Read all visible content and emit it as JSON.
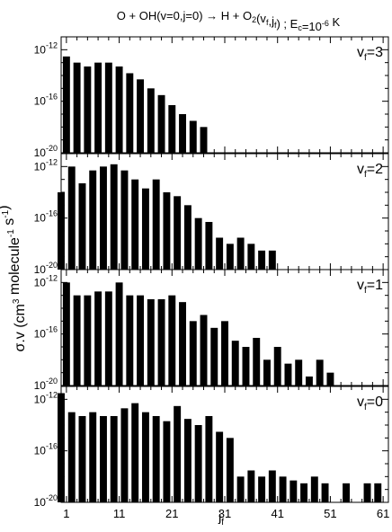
{
  "chart_data": {
    "type": "bar",
    "title": "O + OH(v=0,j=0) → H + O₂(v_f,j_f) ; E_c=10⁻⁶ K",
    "xlabel": "j_f",
    "ylabel": "σ.v (cm³ molecule⁻¹ s⁻¹)",
    "x_ticks": [
      1,
      11,
      21,
      31,
      41,
      51,
      61
    ],
    "xlim": [
      0,
      62
    ],
    "y_scale": "log",
    "ylim": [
      1e-20,
      1e-11
    ],
    "y_ticks": [
      "10⁻²⁰",
      "10⁻¹⁶",
      "10⁻¹²"
    ],
    "y_tick_exponents": [
      -20,
      -16,
      -12
    ],
    "grid": false,
    "panels": [
      {
        "label": "v_f=3",
        "label_text": "v",
        "label_sub": "f",
        "label_suffix": "=3",
        "j": [
          1,
          3,
          5,
          7,
          9,
          11,
          13,
          15,
          17,
          19,
          21,
          23,
          25,
          27
        ],
        "values": [
          3e-13,
          1e-13,
          5e-14,
          1e-13,
          1e-13,
          5e-14,
          1.5e-14,
          5e-15,
          1e-15,
          3e-16,
          5e-17,
          1e-17,
          3e-18,
          1e-18
        ]
      },
      {
        "label": "v_f=2",
        "label_text": "v",
        "label_sub": "f",
        "label_suffix": "=2",
        "j": [
          0,
          2,
          4,
          6,
          8,
          10,
          12,
          14,
          16,
          18,
          20,
          22,
          24,
          26,
          28,
          30,
          32,
          34,
          36,
          38,
          40
        ],
        "values": [
          1e-14,
          1e-12,
          5e-14,
          5e-13,
          1e-12,
          1.5e-12,
          5e-13,
          1e-13,
          2e-14,
          1e-13,
          1e-14,
          5e-15,
          1e-15,
          1e-16,
          5e-17,
          3e-18,
          1e-18,
          3e-18,
          1e-18,
          3e-19,
          3e-19
        ]
      },
      {
        "label": "v_f=1",
        "label_text": "v",
        "label_sub": "f",
        "label_suffix": "=1",
        "j": [
          1,
          3,
          5,
          7,
          9,
          11,
          13,
          15,
          17,
          19,
          21,
          23,
          25,
          27,
          29,
          31,
          33,
          35,
          37,
          39,
          41,
          43,
          45,
          47,
          49,
          51
        ],
        "values": [
          1e-12,
          1e-13,
          1e-13,
          2e-13,
          2e-13,
          1e-12,
          1e-13,
          1e-13,
          5e-14,
          5e-14,
          1e-13,
          3e-14,
          1e-15,
          3e-15,
          3e-16,
          1e-15,
          3e-17,
          1e-17,
          5e-17,
          1e-18,
          1e-17,
          5e-19,
          1e-18,
          5e-20,
          1e-18,
          1e-19
        ]
      },
      {
        "label": "v_f=0",
        "label_text": "v",
        "label_sub": "f",
        "label_suffix": "=0",
        "j": [
          0,
          2,
          4,
          6,
          8,
          10,
          12,
          14,
          16,
          18,
          20,
          22,
          24,
          26,
          28,
          30,
          32,
          34,
          36,
          38,
          40,
          42,
          44,
          46,
          48,
          50,
          52,
          54,
          56,
          58,
          60
        ],
        "values": [
          3e-12,
          1e-13,
          5e-14,
          1e-13,
          5e-14,
          5e-14,
          2e-13,
          5e-13,
          1e-13,
          5e-14,
          2e-14,
          3e-13,
          3e-14,
          1e-14,
          5e-14,
          3e-15,
          1e-15,
          1e-18,
          3e-18,
          1e-18,
          3e-18,
          1e-18,
          5e-19,
          3e-19,
          1e-18,
          3e-19,
          1e-20,
          3e-19,
          1e-20,
          3e-19,
          3e-19
        ]
      }
    ]
  }
}
